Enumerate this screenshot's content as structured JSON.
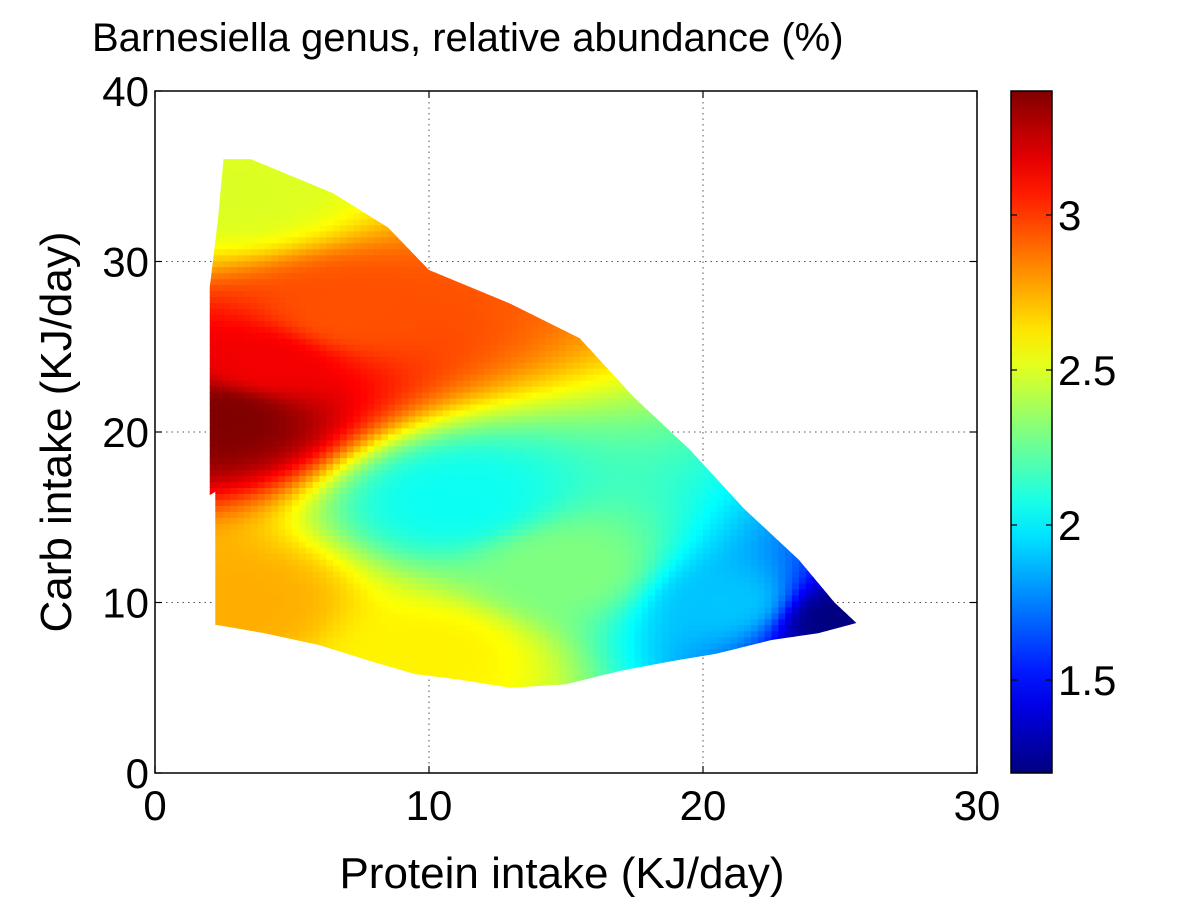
{
  "chart_data": {
    "type": "heatmap",
    "title": "Barnesiella genus, relative abundance (%)",
    "xlabel": "Protein intake (KJ/day)",
    "ylabel": "Carb intake (KJ/day)",
    "xlim": [
      0,
      30
    ],
    "ylim": [
      0,
      40
    ],
    "xticks": [
      "0",
      "10",
      "20",
      "30"
    ],
    "yticks": [
      "0",
      "10",
      "20",
      "30",
      "40"
    ],
    "grid": true,
    "colormap": "jet",
    "colorbar": {
      "position": "right",
      "range": [
        1.2,
        3.4
      ],
      "ticks": [
        "1.5",
        "2",
        "2.5",
        "3"
      ]
    },
    "region_boundary": [
      [
        2.5,
        36
      ],
      [
        3.5,
        36
      ],
      [
        6.5,
        34
      ],
      [
        8.5,
        32
      ],
      [
        10,
        29.5
      ],
      [
        13,
        27.5
      ],
      [
        15.5,
        25.5
      ],
      [
        17.5,
        22
      ],
      [
        19.5,
        19
      ],
      [
        21.5,
        15.5
      ],
      [
        23.5,
        12.5
      ],
      [
        24.8,
        10
      ],
      [
        25.6,
        8.8
      ],
      [
        24.2,
        8.2
      ],
      [
        22.5,
        7.8
      ],
      [
        20.5,
        7
      ],
      [
        19,
        6.6
      ],
      [
        17,
        6
      ],
      [
        15,
        5.2
      ],
      [
        13,
        5
      ],
      [
        11,
        5.5
      ],
      [
        9.5,
        5.8
      ],
      [
        8,
        6.5
      ],
      [
        6,
        7.5
      ],
      [
        4,
        8.2
      ],
      [
        2.2,
        8.7
      ],
      [
        2.2,
        16.5
      ],
      [
        2,
        16.3
      ],
      [
        2,
        28.5
      ],
      [
        2.3,
        32.5
      ],
      [
        2.5,
        36
      ]
    ],
    "surface_features": [
      {
        "x": 2.5,
        "y": 21,
        "value": 3.4
      },
      {
        "x": 4,
        "y": 24,
        "value": 3.15
      },
      {
        "x": 7,
        "y": 27,
        "value": 2.95
      },
      {
        "x": 3,
        "y": 34,
        "value": 2.5
      },
      {
        "x": 11,
        "y": 16,
        "value": 2.05
      },
      {
        "x": 15,
        "y": 12,
        "value": 2.3
      },
      {
        "x": 10,
        "y": 7,
        "value": 2.6
      },
      {
        "x": 3,
        "y": 10,
        "value": 2.75
      },
      {
        "x": 21,
        "y": 10,
        "value": 1.9
      },
      {
        "x": 25,
        "y": 9,
        "value": 1.2
      }
    ]
  }
}
